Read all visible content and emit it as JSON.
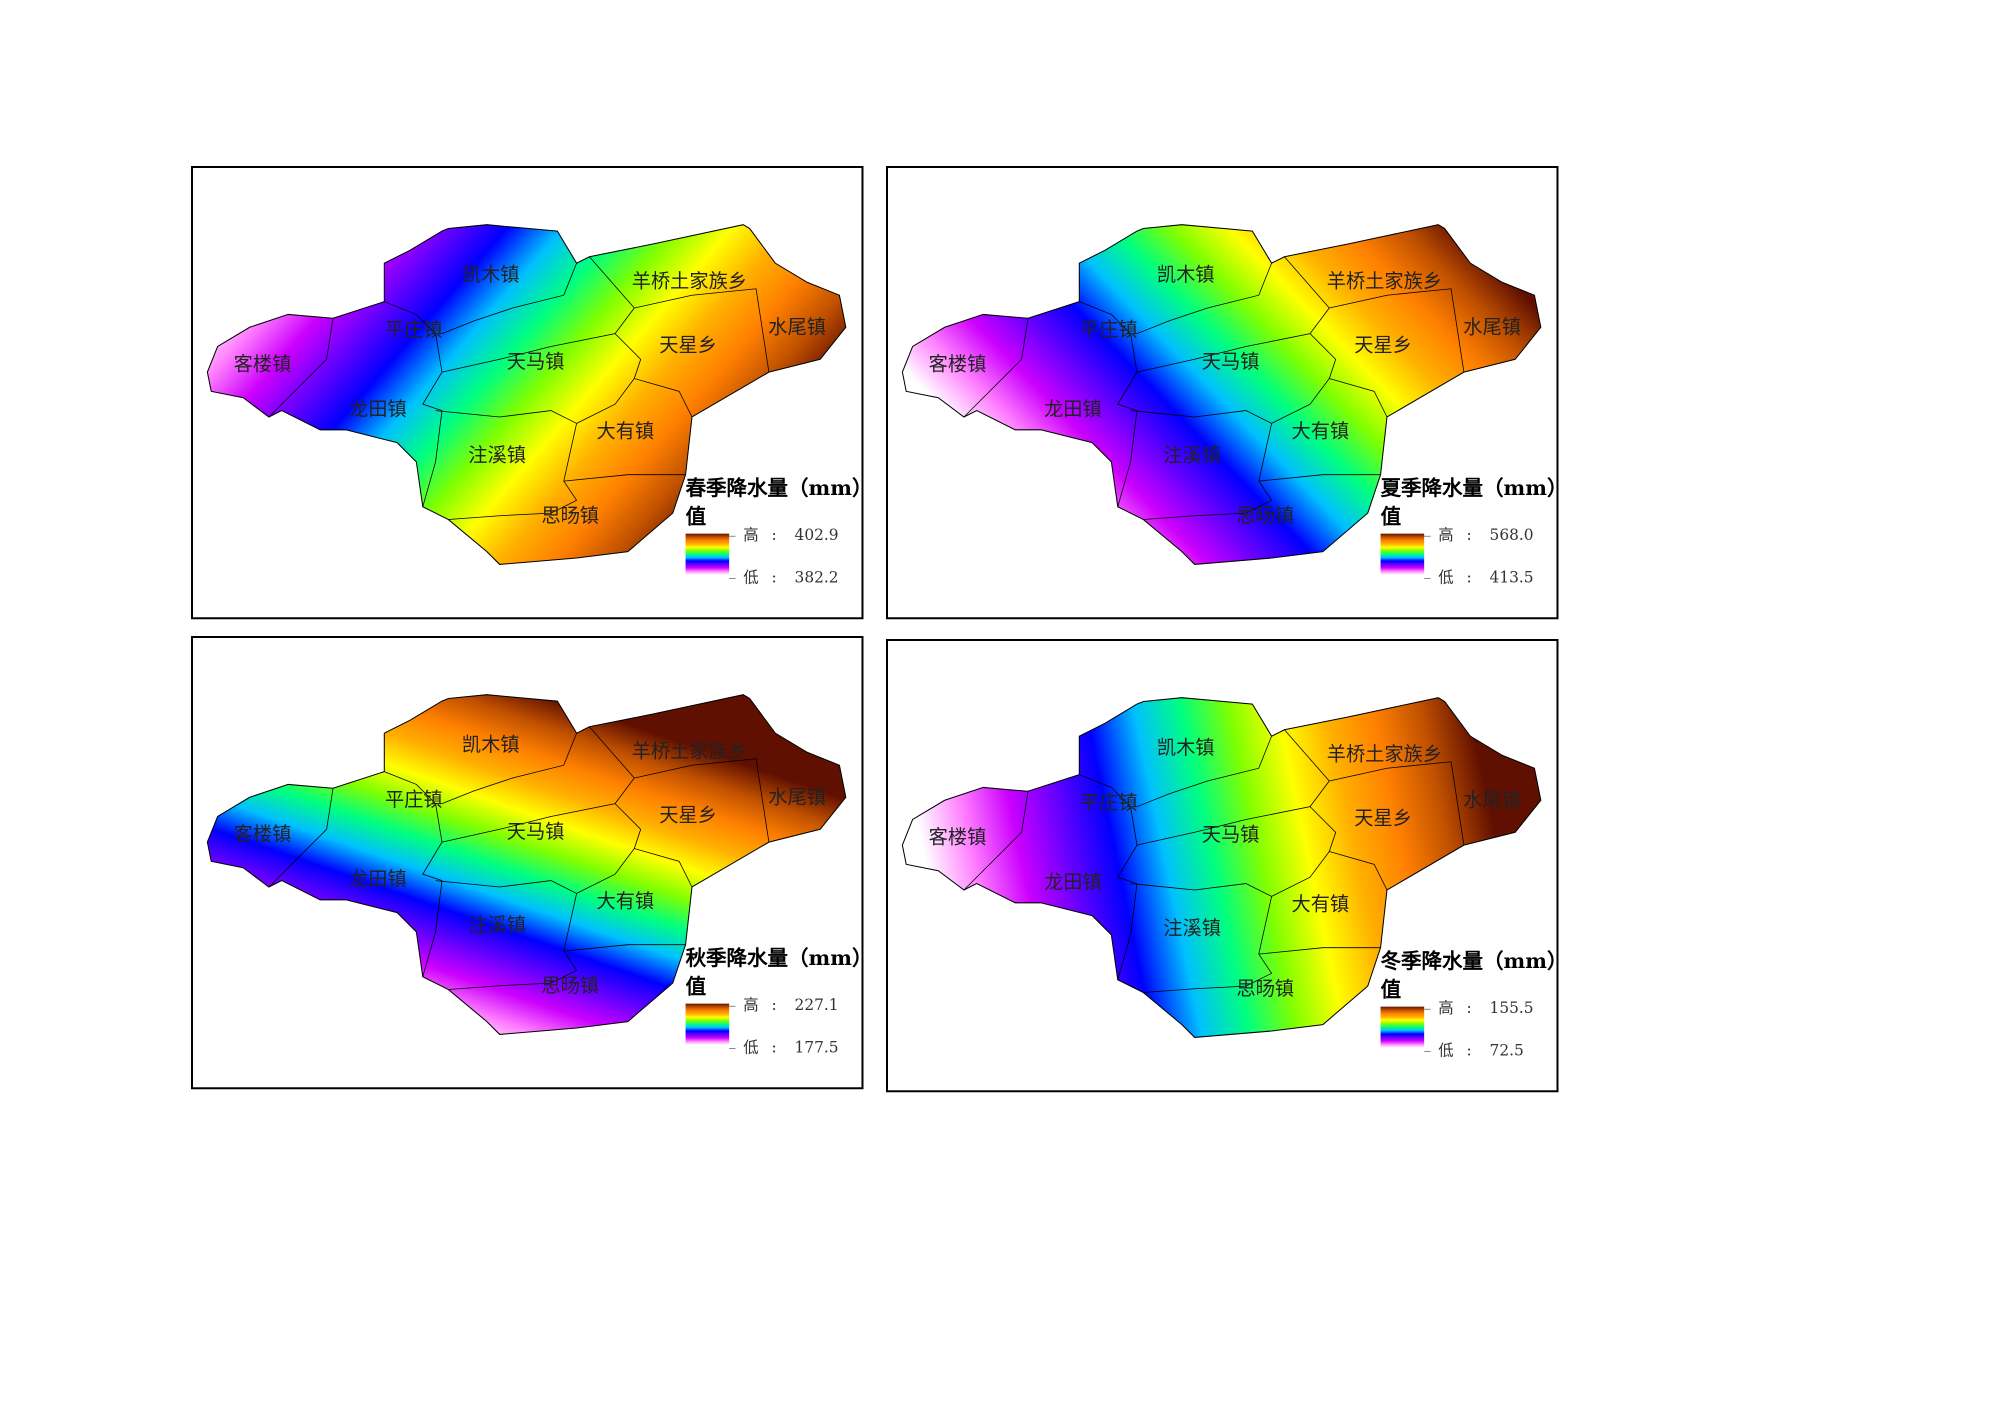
{
  "panels": [
    {
      "title": "春季降水量（mm）",
      "legend_label": "值",
      "high_label": "高",
      "high_value": "402.9",
      "low_label": "低",
      "low_value": "382.2"
    },
    {
      "title": "夏季降水量（mm）",
      "legend_label": "值",
      "high_label": "高",
      "high_value": "568.0",
      "low_label": "低",
      "low_value": "413.5"
    },
    {
      "title": "秋季降水量（mm）",
      "legend_label": "值",
      "high_label": "高",
      "high_value": "227.1",
      "low_label": "低",
      "low_value": "177.5"
    },
    {
      "title": "冬季降水量（mm）",
      "legend_label": "值",
      "high_label": "高",
      "high_value": "155.5",
      "low_label": "低",
      "low_value": "72.5"
    }
  ],
  "separator": ":",
  "towns": [
    "凯木镇",
    "羊桥土家族乡",
    "平庄镇",
    "客楼镇",
    "天马镇",
    "天星乡",
    "水尾镇",
    "龙田镇",
    "大有镇",
    "注溪镇",
    "思旸镇"
  ]
}
